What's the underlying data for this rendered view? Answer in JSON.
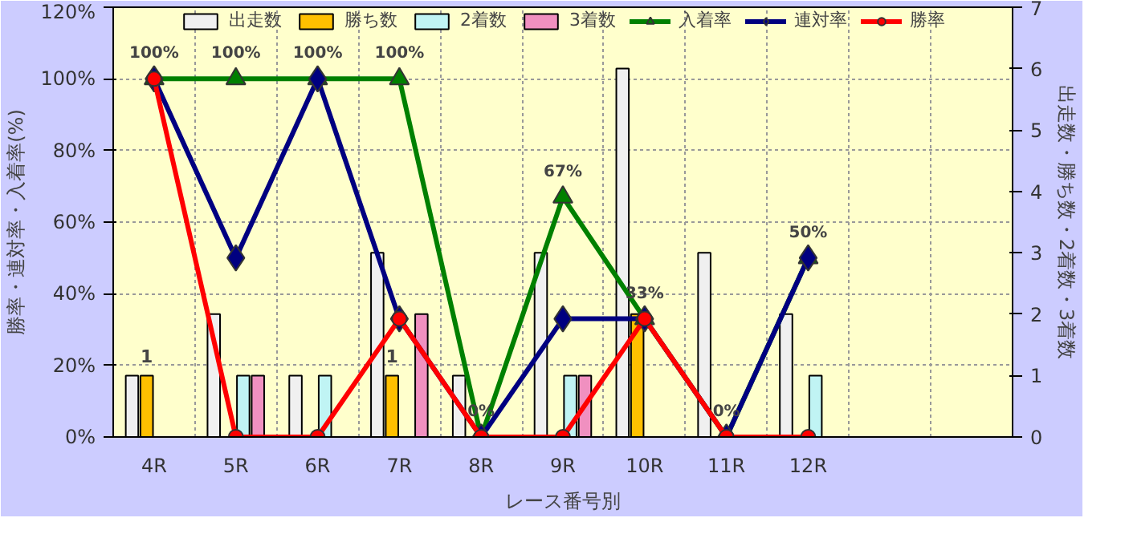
{
  "chart_data": {
    "type": "bar",
    "xlabel": "レース番号別",
    "ylabel": "勝率・連対率・入着率(%)",
    "y2label": "出走数・勝ち数・2着数・3着数",
    "categories": [
      "4R",
      "5R",
      "6R",
      "7R",
      "8R",
      "9R",
      "10R",
      "11R",
      "12R",
      null,
      null
    ],
    "ylim": [
      0,
      120
    ],
    "yticks": [
      {
        "value": 0,
        "label": "0%"
      },
      {
        "value": 20,
        "label": "20%"
      },
      {
        "value": 40,
        "label": "40%"
      },
      {
        "value": 60,
        "label": "60%"
      },
      {
        "value": 80,
        "label": "80%"
      },
      {
        "value": 100,
        "label": "100%"
      },
      {
        "value": 120,
        "label": "120%"
      }
    ],
    "y2lim": [
      0,
      7
    ],
    "y2ticks": [
      0,
      1,
      2,
      3,
      4,
      5,
      6,
      7
    ],
    "grid": true,
    "legend": "top",
    "series": [
      {
        "name": "出走数",
        "axis": "y2",
        "color": "#f0f0f0",
        "values": [
          1,
          2,
          1,
          3,
          1,
          3,
          6,
          3,
          2,
          null,
          null
        ]
      },
      {
        "name": "勝ち数",
        "axis": "y2",
        "color": "#ffc000",
        "values": [
          1,
          null,
          null,
          1,
          null,
          null,
          2,
          null,
          null,
          null,
          null
        ],
        "value_labels": [
          "1",
          null,
          null,
          "1",
          null,
          null,
          null,
          null,
          null,
          null,
          null
        ]
      },
      {
        "name": "2着数",
        "axis": "y2",
        "color": "#c0f4f4",
        "values": [
          null,
          1,
          1,
          null,
          null,
          1,
          null,
          null,
          1,
          null,
          null
        ]
      },
      {
        "name": "3着数",
        "axis": "y2",
        "color": "#f090c0",
        "values": [
          null,
          1,
          null,
          2,
          null,
          1,
          null,
          null,
          null,
          null,
          null
        ]
      },
      {
        "name": "入着率",
        "type": "line",
        "color": "#008000",
        "marker": "triangle",
        "values": [
          100,
          100,
          100,
          100,
          0,
          67,
          33,
          0,
          50,
          null,
          null
        ],
        "value_labels": [
          "100%",
          "100%",
          "100%",
          "100%",
          "0%",
          "67%",
          "33%",
          "0%",
          "50%",
          null,
          null
        ]
      },
      {
        "name": "連対率",
        "type": "line",
        "color": "#000080",
        "marker": "diamond",
        "values": [
          100,
          50,
          100,
          33,
          0,
          33,
          33,
          0,
          50,
          null,
          null
        ]
      },
      {
        "name": "勝率",
        "type": "line",
        "color": "#ff0000",
        "marker": "circle",
        "values": [
          100,
          0,
          0,
          33,
          0,
          0,
          33,
          0,
          0,
          null,
          null
        ]
      }
    ]
  }
}
